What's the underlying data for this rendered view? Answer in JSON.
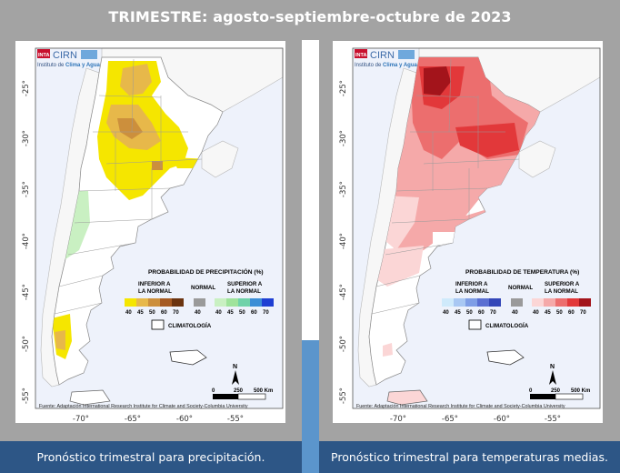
{
  "title": "TRIMESTRE: agosto-septiembre-octubre de 2023",
  "colors": {
    "background": "#a3a3a3",
    "caption_bg": "#2d5686",
    "divider_blue": "#5b95cc",
    "ocean": "#eef2fb",
    "land": "#ffffff"
  },
  "maps": [
    {
      "id": "precip",
      "logo": {
        "badge": "INTA",
        "name": "CIRN",
        "subtitle_a": "Instituto de ",
        "subtitle_b": "Clima y Agua"
      },
      "lat_ticks": [
        "-25°",
        "-30°",
        "-35°",
        "-40°",
        "-45°",
        "-50°",
        "-55°"
      ],
      "lon_ticks": [
        "-70°",
        "-65°",
        "-60°",
        "-55°"
      ],
      "legend": {
        "title": "PROBABILIDAD DE PRECIPITACIÓN (%)",
        "below_label_1": "INFERIOR A",
        "below_label_2": "LA NORMAL",
        "normal_label": "NORMAL",
        "above_label_1": "SUPERIOR A",
        "above_label_2": "LA NORMAL",
        "below_values": [
          "40",
          "45",
          "50",
          "60",
          "70"
        ],
        "normal_values": [
          "40"
        ],
        "above_values": [
          "40",
          "45",
          "50",
          "60",
          "70"
        ],
        "below_colors": [
          "#f5e600",
          "#e7b84a",
          "#cc8f3c",
          "#a55a23",
          "#6b3410"
        ],
        "normal_color": "#9a9a9a",
        "above_colors": [
          "#c9f0c2",
          "#9fe39b",
          "#6fd2a9",
          "#3c8ed6",
          "#1f3fd3"
        ],
        "climatology_label": "CLIMATOLOGÍA"
      },
      "scale": {
        "zero": "0",
        "mid": "250",
        "end": "500 Km",
        "north": "N"
      },
      "source": "Fuente: Adaptación International Research Institute for Climate and Society-Columbia University",
      "caption": "Pronóstico trimestral para precipitación."
    },
    {
      "id": "temp",
      "logo": {
        "badge": "INTA",
        "name": "CIRN",
        "subtitle_a": "Instituto de ",
        "subtitle_b": "Clima y Agua"
      },
      "lat_ticks": [
        "-25°",
        "-30°",
        "-35°",
        "-40°",
        "-45°",
        "-50°",
        "-55°"
      ],
      "lon_ticks": [
        "-70°",
        "-65°",
        "-60°",
        "-55°"
      ],
      "legend": {
        "title": "PROBABILIDAD DE TEMPERATURA (%)",
        "below_label_1": "INFERIOR A",
        "below_label_2": "LA NORMAL",
        "normal_label": "NORMAL",
        "above_label_1": "SUPERIOR A",
        "above_label_2": "LA NORMAL",
        "below_values": [
          "40",
          "45",
          "50",
          "60",
          "70"
        ],
        "normal_values": [
          "40"
        ],
        "above_values": [
          "40",
          "45",
          "50",
          "60",
          "70"
        ],
        "below_colors": [
          "#cfeafb",
          "#a9c8f3",
          "#7f9ee6",
          "#5a6fd2",
          "#3447b8"
        ],
        "normal_color": "#9a9a9a",
        "above_colors": [
          "#fbd6d6",
          "#f5a9a9",
          "#ec6e6e",
          "#e2383a",
          "#a3141b"
        ],
        "climatology_label": "CLIMATOLOGÍA"
      },
      "scale": {
        "zero": "0",
        "mid": "250",
        "end": "500 Km",
        "north": "N"
      },
      "source": "Fuente: Adaptación International Research Institute for Climate and Society-Columbia University",
      "caption": "Pronóstico trimestral para temperaturas medias."
    }
  ]
}
